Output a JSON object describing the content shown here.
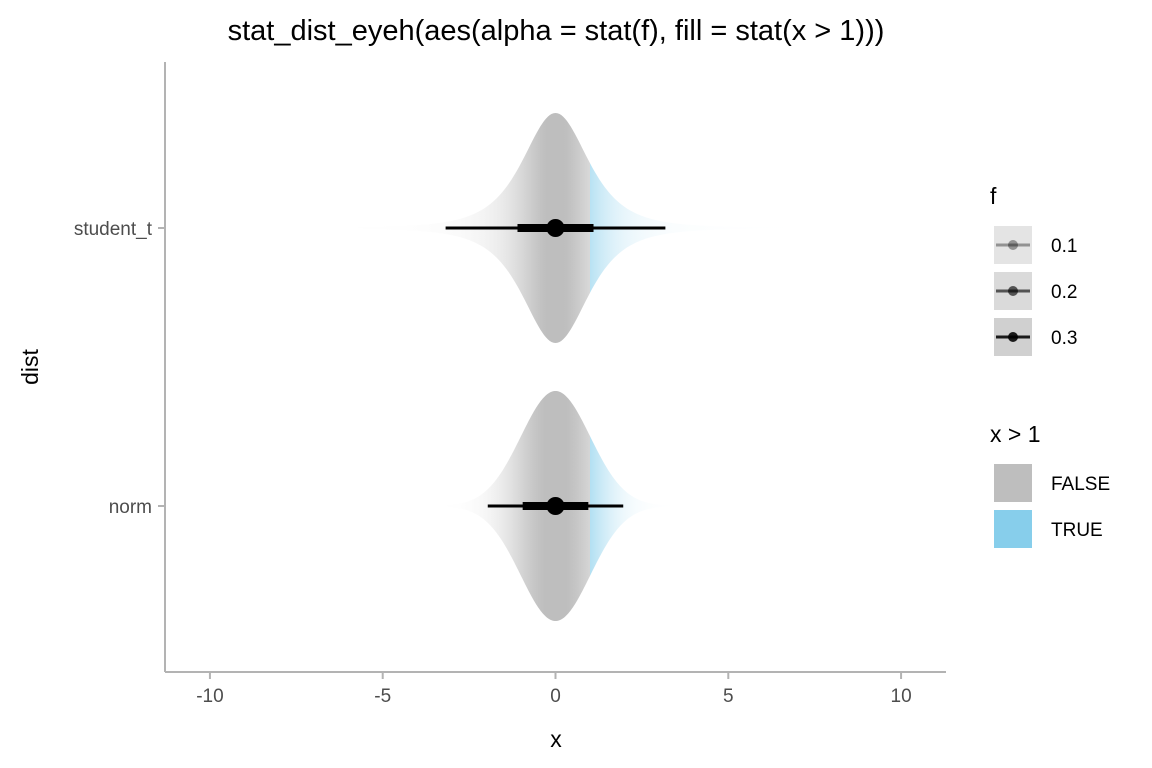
{
  "chart_data": {
    "type": "eye",
    "title": "stat_dist_eyeh(aes(alpha = stat(f), fill = stat(x > 1)))",
    "xlabel": "x",
    "ylabel": "dist",
    "xlim": [
      -11.3,
      11.3
    ],
    "x_ticks": [
      -10,
      -5,
      0,
      5,
      10
    ],
    "x_tick_labels": [
      "-10",
      "-5",
      "0",
      "5",
      "10"
    ],
    "categories": [
      "student_t",
      "norm"
    ],
    "series": [
      {
        "category": "student_t",
        "distribution": "student_t",
        "df": 3,
        "point": 0,
        "interval_66": [
          -1.1,
          1.1
        ],
        "interval_95": [
          -3.18,
          3.18
        ],
        "density_extent": [
          -6.6,
          6.6
        ]
      },
      {
        "category": "norm",
        "distribution": "normal",
        "point": 0,
        "interval_66": [
          -0.95,
          0.95
        ],
        "interval_95": [
          -1.96,
          1.96
        ],
        "density_extent": [
          -3.4,
          3.4
        ]
      }
    ],
    "fill_threshold": 1,
    "legend": {
      "placement": "right",
      "alpha": {
        "title": "f",
        "entries": [
          {
            "label": "0.1",
            "alpha": 0.1
          },
          {
            "label": "0.2",
            "alpha": 0.2
          },
          {
            "label": "0.3",
            "alpha": 0.3
          }
        ]
      },
      "fill": {
        "title": "x > 1",
        "entries": [
          {
            "label": "FALSE",
            "color": "#bebebe"
          },
          {
            "label": "TRUE",
            "color": "#87ceeb"
          }
        ]
      }
    },
    "grid": false,
    "colors": {
      "false_fill": "#bebebe",
      "true_fill": "#87ceeb",
      "axis": "#b3b3b3",
      "interval": "#000000"
    }
  }
}
